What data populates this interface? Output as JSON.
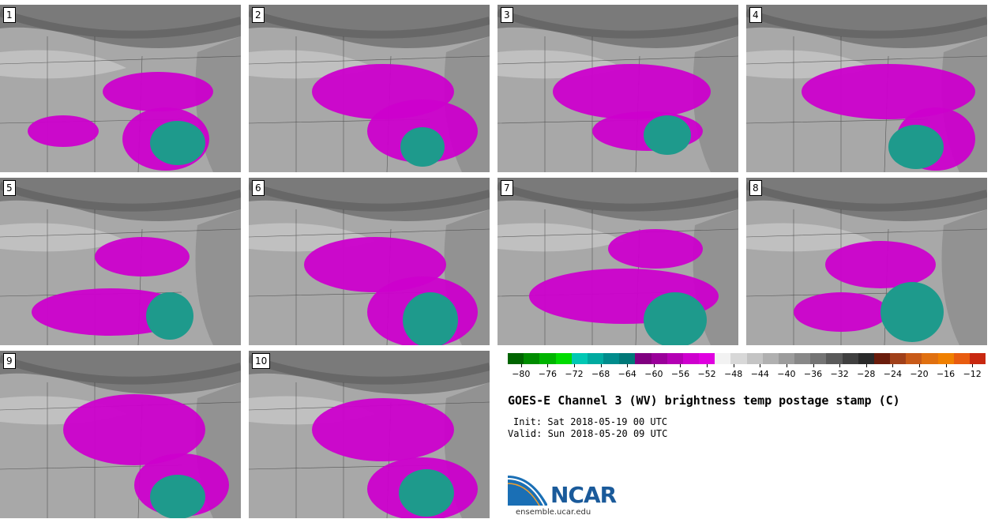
{
  "panels": [
    {
      "label": "1"
    },
    {
      "label": "2"
    },
    {
      "label": "3"
    },
    {
      "label": "4"
    },
    {
      "label": "5"
    },
    {
      "label": "6"
    },
    {
      "label": "7"
    },
    {
      "label": "8"
    },
    {
      "label": "9"
    },
    {
      "label": "10"
    }
  ],
  "colorbar": {
    "colors": [
      "#006400",
      "#008c00",
      "#00b400",
      "#00dc00",
      "#00c8b4",
      "#00aaa0",
      "#008c8c",
      "#007878",
      "#800080",
      "#9a009a",
      "#b400b4",
      "#ce00ce",
      "#e000e0",
      "#f2f2f2",
      "#d8d8d8",
      "#c4c4c4",
      "#b0b0b0",
      "#9c9c9c",
      "#888888",
      "#747474",
      "#5a5a5a",
      "#404040",
      "#2a2a2a",
      "#6a1c0c",
      "#a0401a",
      "#c85a18",
      "#e07010",
      "#f08000",
      "#e85c10",
      "#c82810"
    ],
    "ticks": [
      "−80",
      "−76",
      "−72",
      "−68",
      "−64",
      "−60",
      "−56",
      "−52",
      "−48",
      "−44",
      "−40",
      "−36",
      "−32",
      "−28",
      "−24",
      "−20",
      "−16",
      "−12"
    ],
    "tick_values": [
      -80,
      -76,
      -72,
      -68,
      -64,
      -60,
      -56,
      -52,
      -48,
      -44,
      -40,
      -36,
      -32,
      -28,
      -24,
      -20,
      -16,
      -12
    ],
    "min": -82,
    "max": -10
  },
  "title": "GOES-E Channel 3 (WV) brightness temp postage stamp (C)",
  "init_line": "Init: Sat 2018-05-19 00 UTC",
  "valid_line": "Valid: Sun 2018-05-20 09 UTC",
  "logo": {
    "text": "NCAR",
    "url": "ensemble.ucar.edu"
  },
  "colors": {
    "magenta": "#cc00cc",
    "teal": "#1e9a8c",
    "background_gray": "#9a9a9a"
  }
}
